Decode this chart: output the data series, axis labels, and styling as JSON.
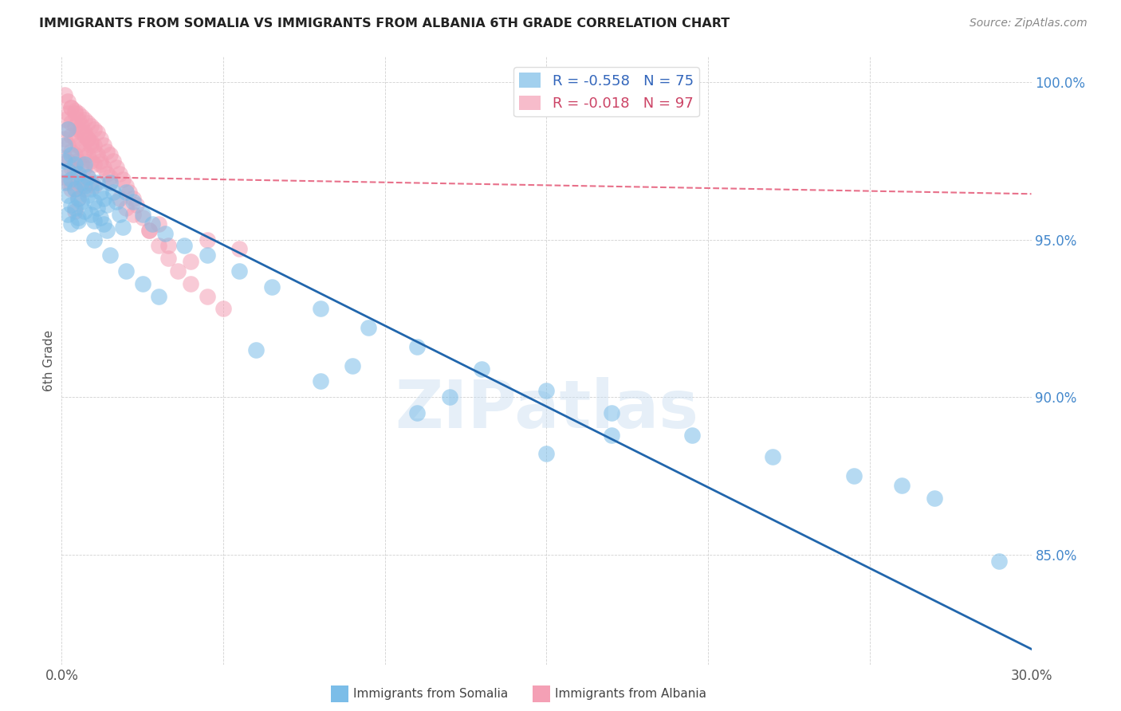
{
  "title": "IMMIGRANTS FROM SOMALIA VS IMMIGRANTS FROM ALBANIA 6TH GRADE CORRELATION CHART",
  "source": "Source: ZipAtlas.com",
  "ylabel_label": "6th Grade",
  "xmin": 0.0,
  "xmax": 0.3,
  "ymin": 0.815,
  "ymax": 1.008,
  "yticks": [
    0.85,
    0.9,
    0.95,
    1.0
  ],
  "ytick_labels": [
    "85.0%",
    "90.0%",
    "95.0%",
    "100.0%"
  ],
  "xtick_vals": [
    0.0,
    0.05,
    0.1,
    0.15,
    0.2,
    0.25,
    0.3
  ],
  "somalia_color": "#7bbde8",
  "albania_color": "#f4a0b5",
  "somalia_line_color": "#2166ac",
  "albania_line_color": "#e8708a",
  "watermark": "ZIPatlas",
  "somalia_line_x": [
    0.0,
    0.3
  ],
  "somalia_line_y": [
    0.974,
    0.82
  ],
  "albania_line_x": [
    0.0,
    0.3
  ],
  "albania_line_y": [
    0.97,
    0.9645
  ],
  "legend_somalia": "R = -0.558   N = 75",
  "legend_albania": "R = -0.018   N = 97",
  "bottom_label1": "Immigrants from Somalia",
  "bottom_label2": "Immigrants from Albania",
  "somalia_x": [
    0.001,
    0.001,
    0.001,
    0.002,
    0.002,
    0.002,
    0.002,
    0.003,
    0.003,
    0.003,
    0.003,
    0.004,
    0.004,
    0.004,
    0.005,
    0.005,
    0.005,
    0.006,
    0.006,
    0.007,
    0.007,
    0.007,
    0.008,
    0.008,
    0.009,
    0.009,
    0.01,
    0.01,
    0.011,
    0.011,
    0.012,
    0.012,
    0.013,
    0.013,
    0.014,
    0.014,
    0.015,
    0.016,
    0.017,
    0.018,
    0.019,
    0.02,
    0.022,
    0.025,
    0.028,
    0.032,
    0.038,
    0.045,
    0.055,
    0.065,
    0.08,
    0.095,
    0.11,
    0.13,
    0.15,
    0.17,
    0.195,
    0.22,
    0.245,
    0.27,
    0.005,
    0.01,
    0.015,
    0.02,
    0.025,
    0.03,
    0.06,
    0.08,
    0.11,
    0.15,
    0.09,
    0.12,
    0.17,
    0.26,
    0.29
  ],
  "somalia_y": [
    0.975,
    0.968,
    0.98,
    0.972,
    0.964,
    0.985,
    0.958,
    0.977,
    0.969,
    0.961,
    0.955,
    0.974,
    0.966,
    0.96,
    0.971,
    0.963,
    0.956,
    0.968,
    0.962,
    0.974,
    0.967,
    0.959,
    0.97,
    0.964,
    0.966,
    0.958,
    0.962,
    0.956,
    0.968,
    0.96,
    0.965,
    0.957,
    0.963,
    0.955,
    0.961,
    0.953,
    0.968,
    0.965,
    0.962,
    0.958,
    0.954,
    0.965,
    0.962,
    0.958,
    0.955,
    0.952,
    0.948,
    0.945,
    0.94,
    0.935,
    0.928,
    0.922,
    0.916,
    0.909,
    0.902,
    0.895,
    0.888,
    0.881,
    0.875,
    0.868,
    0.957,
    0.95,
    0.945,
    0.94,
    0.936,
    0.932,
    0.915,
    0.905,
    0.895,
    0.882,
    0.91,
    0.9,
    0.888,
    0.872,
    0.848
  ],
  "albania_x": [
    0.001,
    0.001,
    0.001,
    0.001,
    0.002,
    0.002,
    0.002,
    0.002,
    0.002,
    0.003,
    0.003,
    0.003,
    0.003,
    0.003,
    0.003,
    0.004,
    0.004,
    0.004,
    0.004,
    0.004,
    0.004,
    0.004,
    0.005,
    0.005,
    0.005,
    0.005,
    0.005,
    0.005,
    0.006,
    0.006,
    0.006,
    0.006,
    0.006,
    0.007,
    0.007,
    0.007,
    0.007,
    0.007,
    0.008,
    0.008,
    0.008,
    0.008,
    0.009,
    0.009,
    0.009,
    0.009,
    0.01,
    0.01,
    0.01,
    0.01,
    0.011,
    0.011,
    0.012,
    0.012,
    0.013,
    0.013,
    0.014,
    0.014,
    0.015,
    0.015,
    0.016,
    0.017,
    0.018,
    0.019,
    0.02,
    0.021,
    0.022,
    0.023,
    0.025,
    0.027,
    0.03,
    0.033,
    0.036,
    0.04,
    0.045,
    0.05,
    0.001,
    0.002,
    0.003,
    0.004,
    0.005,
    0.006,
    0.007,
    0.008,
    0.009,
    0.01,
    0.012,
    0.015,
    0.018,
    0.022,
    0.027,
    0.033,
    0.04,
    0.02,
    0.03,
    0.045,
    0.055
  ],
  "albania_y": [
    0.988,
    0.982,
    0.976,
    0.97,
    0.99,
    0.985,
    0.98,
    0.975,
    0.968,
    0.992,
    0.987,
    0.983,
    0.978,
    0.973,
    0.966,
    0.991,
    0.986,
    0.982,
    0.977,
    0.972,
    0.966,
    0.959,
    0.99,
    0.985,
    0.98,
    0.975,
    0.97,
    0.963,
    0.989,
    0.984,
    0.979,
    0.974,
    0.967,
    0.988,
    0.983,
    0.978,
    0.973,
    0.966,
    0.987,
    0.982,
    0.977,
    0.97,
    0.986,
    0.981,
    0.975,
    0.968,
    0.985,
    0.98,
    0.974,
    0.967,
    0.984,
    0.977,
    0.982,
    0.975,
    0.98,
    0.973,
    0.978,
    0.971,
    0.977,
    0.97,
    0.975,
    0.973,
    0.971,
    0.969,
    0.967,
    0.965,
    0.963,
    0.961,
    0.957,
    0.953,
    0.948,
    0.944,
    0.94,
    0.936,
    0.932,
    0.928,
    0.996,
    0.994,
    0.992,
    0.99,
    0.988,
    0.986,
    0.984,
    0.982,
    0.98,
    0.978,
    0.974,
    0.968,
    0.963,
    0.958,
    0.953,
    0.948,
    0.943,
    0.96,
    0.955,
    0.95,
    0.947
  ]
}
